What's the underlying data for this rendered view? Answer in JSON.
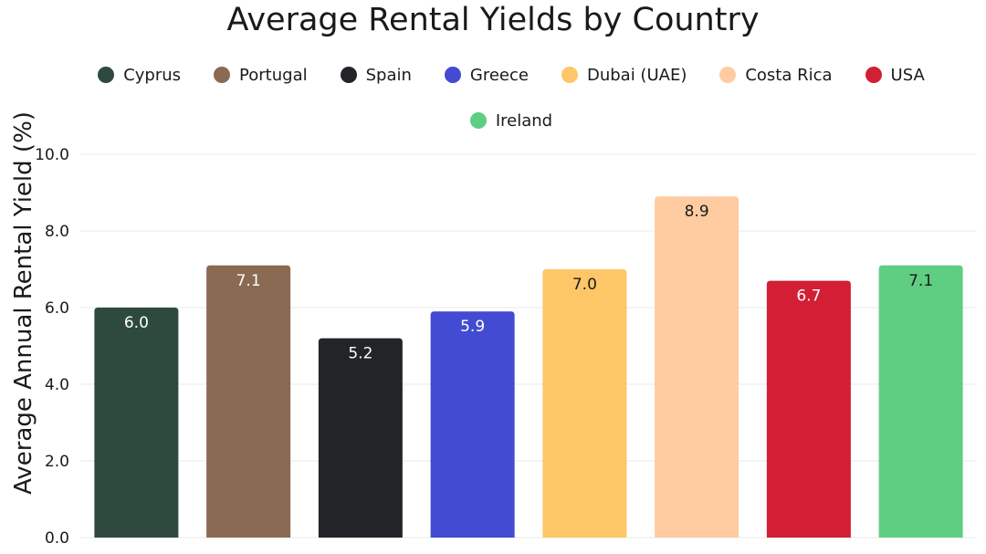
{
  "chart_data": {
    "type": "bar",
    "title": "Average Rental Yields by Country",
    "ylabel": "Average Annual Rental Yield (%)",
    "xlabel": "",
    "ylim": [
      0,
      10
    ],
    "yticks": [
      "0.0",
      "2.0",
      "4.0",
      "6.0",
      "8.0",
      "10.0"
    ],
    "grid": true,
    "legend_position": "top",
    "categories": [
      "Cyprus",
      "Portugal",
      "Spain",
      "Greece",
      "Dubai (UAE)",
      "Costa Rica",
      "USA",
      "Ireland"
    ],
    "values": [
      6.0,
      7.1,
      5.2,
      5.9,
      7.0,
      8.9,
      6.7,
      7.1
    ],
    "value_labels": [
      "6.0",
      "7.1",
      "5.2",
      "5.9",
      "7.0",
      "8.9",
      "6.7",
      "7.1"
    ],
    "colors": [
      "#2e4a3e",
      "#8a6a52",
      "#232427",
      "#424bd1",
      "#fdc667",
      "#ffcca1",
      "#d21f33",
      "#5fce82"
    ],
    "label_colors": [
      "#ffffff",
      "#ffffff",
      "#ffffff",
      "#ffffff",
      "#1a1a1a",
      "#1a1a1a",
      "#ffffff",
      "#1a1a1a"
    ]
  }
}
